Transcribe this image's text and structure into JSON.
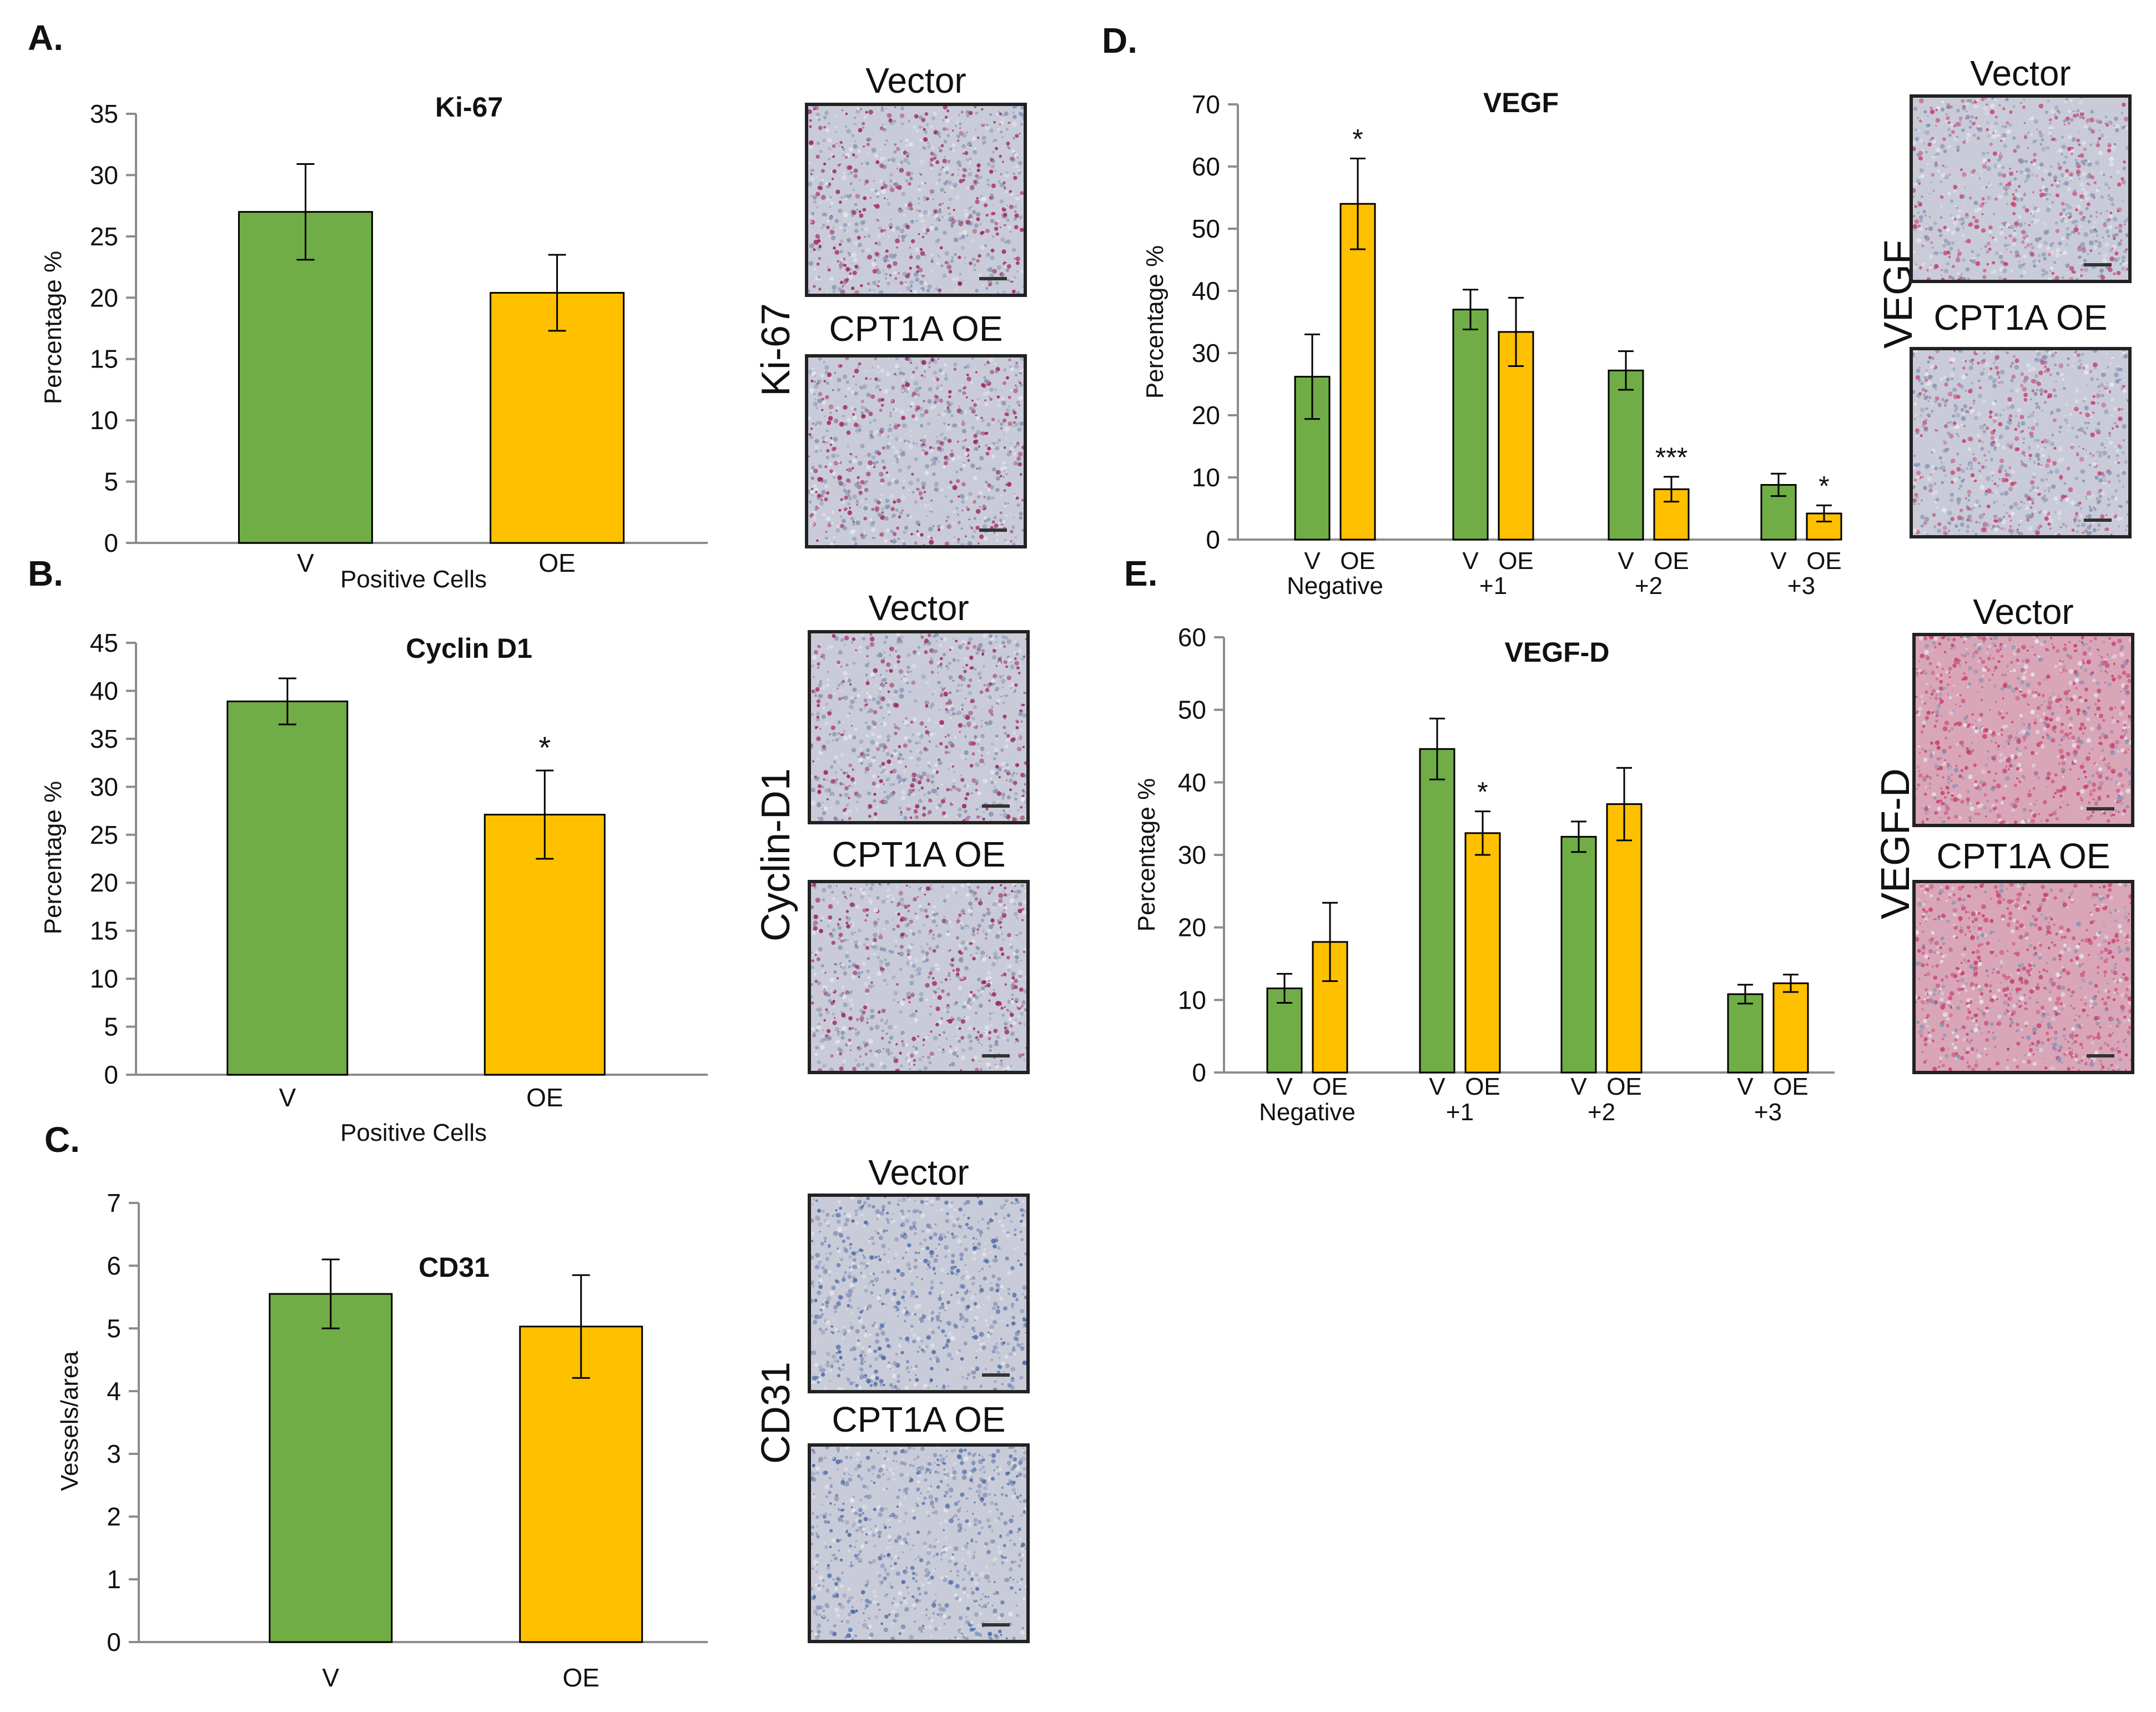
{
  "panel_letters": {
    "a": "A.",
    "b": "B.",
    "c": "C.",
    "d": "D.",
    "e": "E."
  },
  "colors": {
    "vector": "#70AD47",
    "oe": "#FFC000",
    "bar_edge": "#000000",
    "axis": "#8c8c8c",
    "ki67_stain": "#a0215d",
    "vegf_stain": "#c8406f",
    "cd31_stain": "#4a6aa8"
  },
  "micrographs": {
    "ki67": {
      "side_label": "Ki-67",
      "top_label": "Vector",
      "bottom_label": "CPT1A OE"
    },
    "cyclin": {
      "side_label": "Cyclin-D1",
      "top_label": "Vector",
      "bottom_label": "CPT1A OE"
    },
    "cd31": {
      "side_label": "CD31",
      "top_label": "Vector",
      "bottom_label": "CPT1A OE"
    },
    "vegf": {
      "side_label": "VEGF",
      "top_label": "Vector",
      "bottom_label": "CPT1A OE"
    },
    "vegfd": {
      "side_label": "VEGF-D",
      "top_label": "Vector",
      "bottom_label": "CPT1A OE"
    }
  },
  "chart_data": [
    {
      "id": "ki67",
      "panel": "A.",
      "type": "bar",
      "title": "Ki-67",
      "ylabel": "Percentage %",
      "xlabel": "Positive Cells",
      "categories": [
        "V",
        "OE"
      ],
      "values": [
        27.0,
        20.4
      ],
      "errors": [
        3.9,
        3.1
      ],
      "sig": [
        "",
        ""
      ],
      "ylim": [
        0,
        35
      ],
      "ytick_step": 5
    },
    {
      "id": "cyclin",
      "panel": "B.",
      "type": "bar",
      "title": "Cyclin D1",
      "ylabel": "Percentage %",
      "xlabel": "Positive Cells",
      "categories": [
        "V",
        "OE"
      ],
      "values": [
        38.9,
        27.1
      ],
      "errors": [
        2.4,
        4.6
      ],
      "sig": [
        "",
        "*"
      ],
      "ylim": [
        0,
        45
      ],
      "ytick_step": 5
    },
    {
      "id": "cd31",
      "panel": "C.",
      "type": "bar",
      "title": "CD31",
      "ylabel": "Vessels/area",
      "xlabel": "",
      "categories": [
        "V",
        "OE"
      ],
      "values": [
        5.55,
        5.03
      ],
      "errors": [
        0.55,
        0.82
      ],
      "sig": [
        "",
        ""
      ],
      "ylim": [
        0,
        7
      ],
      "ytick_step": 1
    },
    {
      "id": "vegf",
      "panel": "D.",
      "type": "bar",
      "title": "VEGF",
      "ylabel": "Percentage %",
      "xlabel": "",
      "groups": [
        "Negative",
        "+1",
        "+2",
        "+3"
      ],
      "series_labels": [
        "V",
        "OE"
      ],
      "series": [
        {
          "name": "V",
          "values": [
            26.2,
            37.0,
            27.2,
            8.8
          ],
          "errors": [
            6.8,
            3.2,
            3.1,
            1.8
          ],
          "sig": [
            "",
            "",
            "",
            ""
          ]
        },
        {
          "name": "OE",
          "values": [
            54.0,
            33.4,
            8.1,
            4.2
          ],
          "errors": [
            7.3,
            5.5,
            2.0,
            1.3
          ],
          "sig": [
            "*",
            "",
            "***",
            "*"
          ]
        }
      ],
      "ylim": [
        0,
        70
      ],
      "ytick_step": 10
    },
    {
      "id": "vegfd",
      "panel": "E.",
      "type": "bar",
      "title": "VEGF-D",
      "ylabel": "Percentage %",
      "xlabel": "",
      "groups": [
        "Negative",
        "+1",
        "+2",
        "+3"
      ],
      "series_labels": [
        "V",
        "OE"
      ],
      "series": [
        {
          "name": "V",
          "values": [
            11.6,
            44.6,
            32.5,
            10.8
          ],
          "errors": [
            2.0,
            4.2,
            2.1,
            1.3
          ],
          "sig": [
            "",
            "",
            "",
            ""
          ]
        },
        {
          "name": "OE",
          "values": [
            18.0,
            33.0,
            37.0,
            12.3
          ],
          "errors": [
            5.4,
            3.0,
            5.0,
            1.2
          ],
          "sig": [
            "",
            "*",
            "",
            ""
          ]
        }
      ],
      "ylim": [
        0,
        60
      ],
      "ytick_step": 10
    }
  ]
}
